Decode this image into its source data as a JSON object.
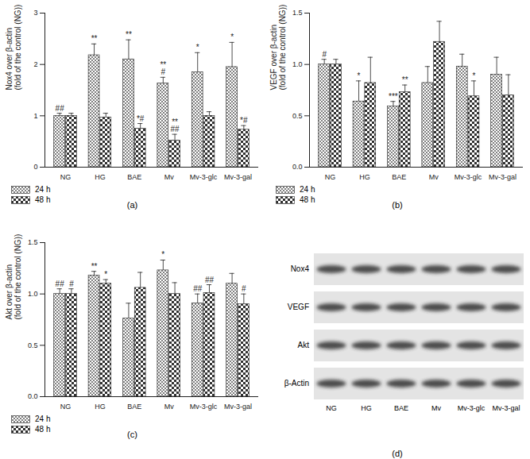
{
  "chart_data": [
    {
      "type": "bar",
      "caption": "(a)",
      "ylabel": "Nox4 over β-actin\n(fold of the control (NG))",
      "categories": [
        "NG",
        "HG",
        "BAE",
        "Mv",
        "Mv-3-glc",
        "Mv-3-gal"
      ],
      "ylim": [
        0,
        3
      ],
      "yticks": [
        0,
        1,
        2,
        3
      ],
      "legend": "bottom",
      "series": [
        {
          "name": "24 h",
          "color": "#808080",
          "values": [
            1.0,
            2.18,
            2.1,
            1.63,
            1.85,
            1.95
          ],
          "errors": [
            0.05,
            0.22,
            0.38,
            0.12,
            0.38,
            0.48
          ],
          "annotations": [
            "##",
            "**",
            "**",
            "**\n#",
            "*",
            "*"
          ]
        },
        {
          "name": "48 h",
          "color": "#303030",
          "values": [
            1.0,
            0.97,
            0.75,
            0.52,
            1.0,
            0.73
          ],
          "errors": [
            0.05,
            0.08,
            0.1,
            0.12,
            0.08,
            0.08
          ],
          "annotations": [
            null,
            null,
            "*#",
            "**\n##",
            null,
            "*#"
          ]
        }
      ]
    },
    {
      "type": "bar",
      "caption": "(b)",
      "ylabel": "VEGF over β-actin\n(fold of the control (NG))",
      "categories": [
        "NG",
        "HG",
        "BAE",
        "Mv",
        "Mv-3-glc",
        "Mv-3-gal"
      ],
      "ylim": [
        0,
        1.5
      ],
      "yticks": [
        {
          "value": 0,
          "label": "0.0"
        },
        {
          "value": 0.5,
          "label": "0.5"
        },
        {
          "value": 1,
          "label": "1.0"
        },
        {
          "value": 1.5,
          "label": "1.5"
        }
      ],
      "legend": "bottom",
      "series": [
        {
          "name": "24 h",
          "color": "#808080",
          "values": [
            1.0,
            0.64,
            0.59,
            0.82,
            0.98,
            0.9
          ],
          "errors": [
            0.05,
            0.2,
            0.05,
            0.16,
            0.12,
            0.17
          ],
          "annotations": [
            "#",
            "*",
            "***",
            null,
            null,
            null
          ]
        },
        {
          "name": "48 h",
          "color": "#303030",
          "values": [
            1.0,
            0.82,
            0.73,
            1.22,
            0.69,
            0.7
          ],
          "errors": [
            0.05,
            0.25,
            0.07,
            0.2,
            0.15,
            0.2
          ],
          "annotations": [
            null,
            null,
            "**",
            null,
            "*",
            null
          ]
        }
      ]
    },
    {
      "type": "bar",
      "caption": "(c)",
      "ylabel": "Akt over β-actin\n(fold of the control (NG))",
      "categories": [
        "NG",
        "HG",
        "BAE",
        "Mv",
        "Mv-3-glc",
        "Mv-3-gal"
      ],
      "ylim": [
        0,
        1.5
      ],
      "yticks": [
        {
          "value": 0,
          "label": "0.0"
        },
        {
          "value": 0.5,
          "label": "0.5"
        },
        {
          "value": 1,
          "label": "1.0"
        },
        {
          "value": 1.5,
          "label": "1.5"
        }
      ],
      "legend": "bottom",
      "series": [
        {
          "name": "24 h",
          "color": "#808080",
          "values": [
            1.0,
            1.18,
            0.76,
            1.23,
            0.91,
            1.1
          ],
          "errors": [
            0.05,
            0.04,
            0.15,
            0.1,
            0.09,
            0.1
          ],
          "annotations": [
            "##",
            "**",
            null,
            "*",
            "##",
            null
          ]
        },
        {
          "name": "48 h",
          "color": "#303030",
          "values": [
            1.0,
            1.1,
            1.06,
            1.0,
            1.01,
            0.9
          ],
          "errors": [
            0.05,
            0.04,
            0.15,
            0.11,
            0.08,
            0.1
          ],
          "annotations": [
            "#",
            "*",
            null,
            null,
            "##",
            "#"
          ]
        }
      ]
    }
  ],
  "blot": {
    "caption": "(d)",
    "rows": [
      "Nox4",
      "VEGF",
      "Akt",
      "β-Actin"
    ],
    "lanes": [
      "NG",
      "HG",
      "BAE",
      "Mv",
      "Mv-3-glc",
      "Mv-3-gal"
    ]
  }
}
